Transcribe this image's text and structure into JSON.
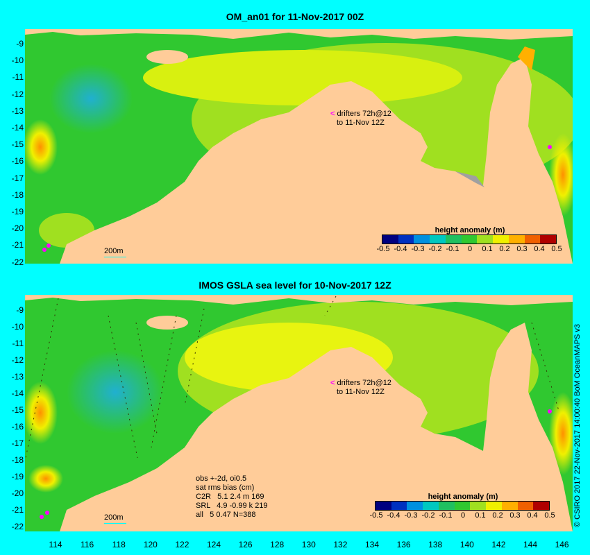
{
  "top_panel": {
    "title": "OM_an01 for 11-Nov-2017 00Z",
    "drifter_note": [
      "drifters 72h@12",
      "to 11-Nov 12Z"
    ],
    "scale_label": "200m"
  },
  "bottom_panel": {
    "title": "IMOS GSLA sea level  for 10-Nov-2017 12Z",
    "drifter_note": [
      "drifters 72h@12",
      "to 11-Nov 12Z"
    ],
    "scale_label": "200m",
    "stats": [
      "obs +-2d, oi0.5",
      "sat rms bias (cm)",
      "C2R   5.1 2.4 m 169",
      "SRL   4.9 -0.99 k 219",
      "all   5 0.47 N=388"
    ]
  },
  "legend": {
    "title": "height anomaly (m)",
    "ticks": [
      "-0.5",
      "-0.4",
      "-0.3",
      "-0.2",
      "-0.1",
      "0",
      "0.1",
      "0.2",
      "0.3",
      "0.4",
      "0.5"
    ],
    "colors": [
      "#000080",
      "#0030c0",
      "#0090e0",
      "#00c8c0",
      "#20c060",
      "#30c830",
      "#a0e020",
      "#f0f000",
      "#ffb000",
      "#f06000",
      "#b00000"
    ]
  },
  "axes": {
    "lat_ticks": [
      "-9",
      "-10",
      "-11",
      "-12",
      "-13",
      "-14",
      "-15",
      "-16",
      "-17",
      "-18",
      "-19",
      "-20",
      "-21",
      "-22"
    ],
    "lon_ticks": [
      "114",
      "116",
      "118",
      "120",
      "122",
      "124",
      "126",
      "128",
      "130",
      "132",
      "134",
      "136",
      "138",
      "140",
      "142",
      "144",
      "146"
    ]
  },
  "credit": "© CSIRO 2017  22-Nov-2017 14:00:40 BoM OceanMAPS v3",
  "colors": {
    "background": "#00ffff",
    "land": "#ffcc99",
    "shelf": "#a0a0a0"
  }
}
